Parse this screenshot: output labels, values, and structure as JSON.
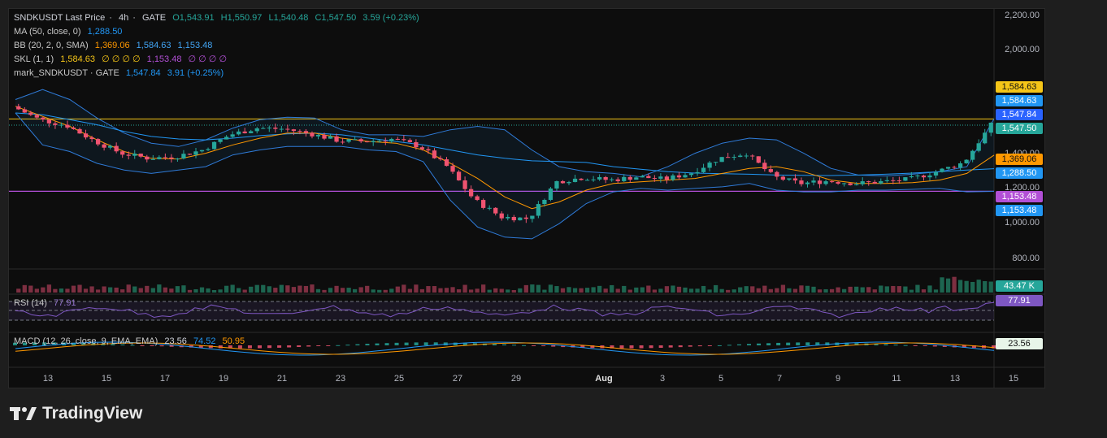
{
  "header": {
    "symbol": "SNDKUSDT Last Price",
    "interval": "4h",
    "exchange": "GATE",
    "open": "O1,543.91",
    "high": "H1,550.97",
    "low": "L1,540.48",
    "close": "C1,547.50",
    "change": "3.59 (+0.23%)"
  },
  "indicators": {
    "ma": {
      "label": "MA (50, close, 0)",
      "value": "1,288.50"
    },
    "bb": {
      "label": "BB (20, 2, 0, SMA)",
      "basis": "1,369.06",
      "upper": "1,584.63",
      "lower": "1,153.48"
    },
    "skl": {
      "label": "SKL (1, 1)",
      "v1": "1,584.63",
      "z1": "∅ ∅ ∅ ∅",
      "v2": "1,153.48",
      "z2": "∅ ∅ ∅ ∅"
    },
    "mark": {
      "label": "mark_SNDKUSDT · GATE",
      "price": "1,547.84",
      "change": "3.91 (+0.25%)"
    },
    "rsi": {
      "label": "RSI (14)",
      "value": "77.91"
    },
    "macd": {
      "label": "MACD (12, 26, close, 9, EMA, EMA)",
      "hist": "23.56",
      "macd": "74.52",
      "signal": "50.95"
    }
  },
  "price_tags": {
    "skl_upper": "1,584.63",
    "bb_upper": "1,584.63",
    "mark": "1,547.84",
    "last": "1,547.50",
    "bb_basis": "1,369.06",
    "ma": "1,288.50",
    "skl_lower": "1,153.48",
    "bb_lower": "1,153.48",
    "volume": "43.47 K",
    "rsi": "77.91",
    "macd_hist": "23.56"
  },
  "brand": "TradingView",
  "colors": {
    "up": "#26a69a",
    "down": "#ef5370",
    "ma": "#2196f3",
    "bb": "#2962ff",
    "basis": "#ff9800",
    "skl_upper": "#f5c518",
    "skl_lower": "#b24fd6",
    "rsi": "#7e57c2"
  },
  "chart_data": {
    "type": "candlestick",
    "y_ticks": [
      "2,200.00",
      "2,000.00",
      "1,400.00",
      "1,200.00",
      "1,000.00",
      "800.00"
    ],
    "ylim": [
      700,
      2240
    ],
    "x_ticks": [
      "13",
      "15",
      "17",
      "19",
      "21",
      "23",
      "25",
      "27",
      "29",
      "Aug",
      "3",
      "5",
      "7",
      "9",
      "11",
      "13",
      "15"
    ],
    "close_path": [
      1660,
      1580,
      1545,
      1455,
      1380,
      1350,
      1360,
      1400,
      1490,
      1530,
      1525,
      1495,
      1455,
      1450,
      1465,
      1420,
      1300,
      1100,
      1000,
      990,
      1210,
      1235,
      1220,
      1240,
      1225,
      1265,
      1350,
      1380,
      1240,
      1200,
      1215,
      1200,
      1210,
      1225,
      1270,
      1325,
      1548
    ],
    "ma_path": [
      1620,
      1610,
      1580,
      1550,
      1510,
      1480,
      1465,
      1460,
      1470,
      1485,
      1495,
      1500,
      1490,
      1470,
      1450,
      1430,
      1400,
      1370,
      1350,
      1335,
      1330,
      1325,
      1300,
      1285,
      1270,
      1262,
      1258,
      1255,
      1250,
      1248,
      1247,
      1250,
      1255,
      1262,
      1270,
      1280,
      1288
    ],
    "bb_upper_path": [
      1700,
      1760,
      1700,
      1590,
      1500,
      1440,
      1420,
      1460,
      1530,
      1580,
      1595,
      1590,
      1520,
      1490,
      1490,
      1480,
      1520,
      1540,
      1520,
      1400,
      1300,
      1270,
      1260,
      1240,
      1300,
      1380,
      1440,
      1470,
      1460,
      1380,
      1290,
      1250,
      1245,
      1255,
      1270,
      1300,
      1585
    ],
    "bb_lower_path": [
      1620,
      1430,
      1390,
      1320,
      1280,
      1260,
      1280,
      1300,
      1370,
      1400,
      1420,
      1420,
      1420,
      1400,
      1390,
      1330,
      1100,
      940,
      880,
      870,
      960,
      1080,
      1150,
      1170,
      1160,
      1170,
      1180,
      1200,
      1160,
      1150,
      1150,
      1160,
      1160,
      1165,
      1170,
      1150,
      1153
    ],
    "basis_path": [
      1660,
      1600,
      1540,
      1460,
      1390,
      1350,
      1345,
      1380,
      1430,
      1470,
      1500,
      1500,
      1470,
      1450,
      1440,
      1400,
      1320,
      1230,
      1120,
      1050,
      1090,
      1160,
      1200,
      1210,
      1220,
      1230,
      1260,
      1290,
      1300,
      1270,
      1220,
      1200,
      1200,
      1205,
      1220,
      1260,
      1369
    ]
  }
}
